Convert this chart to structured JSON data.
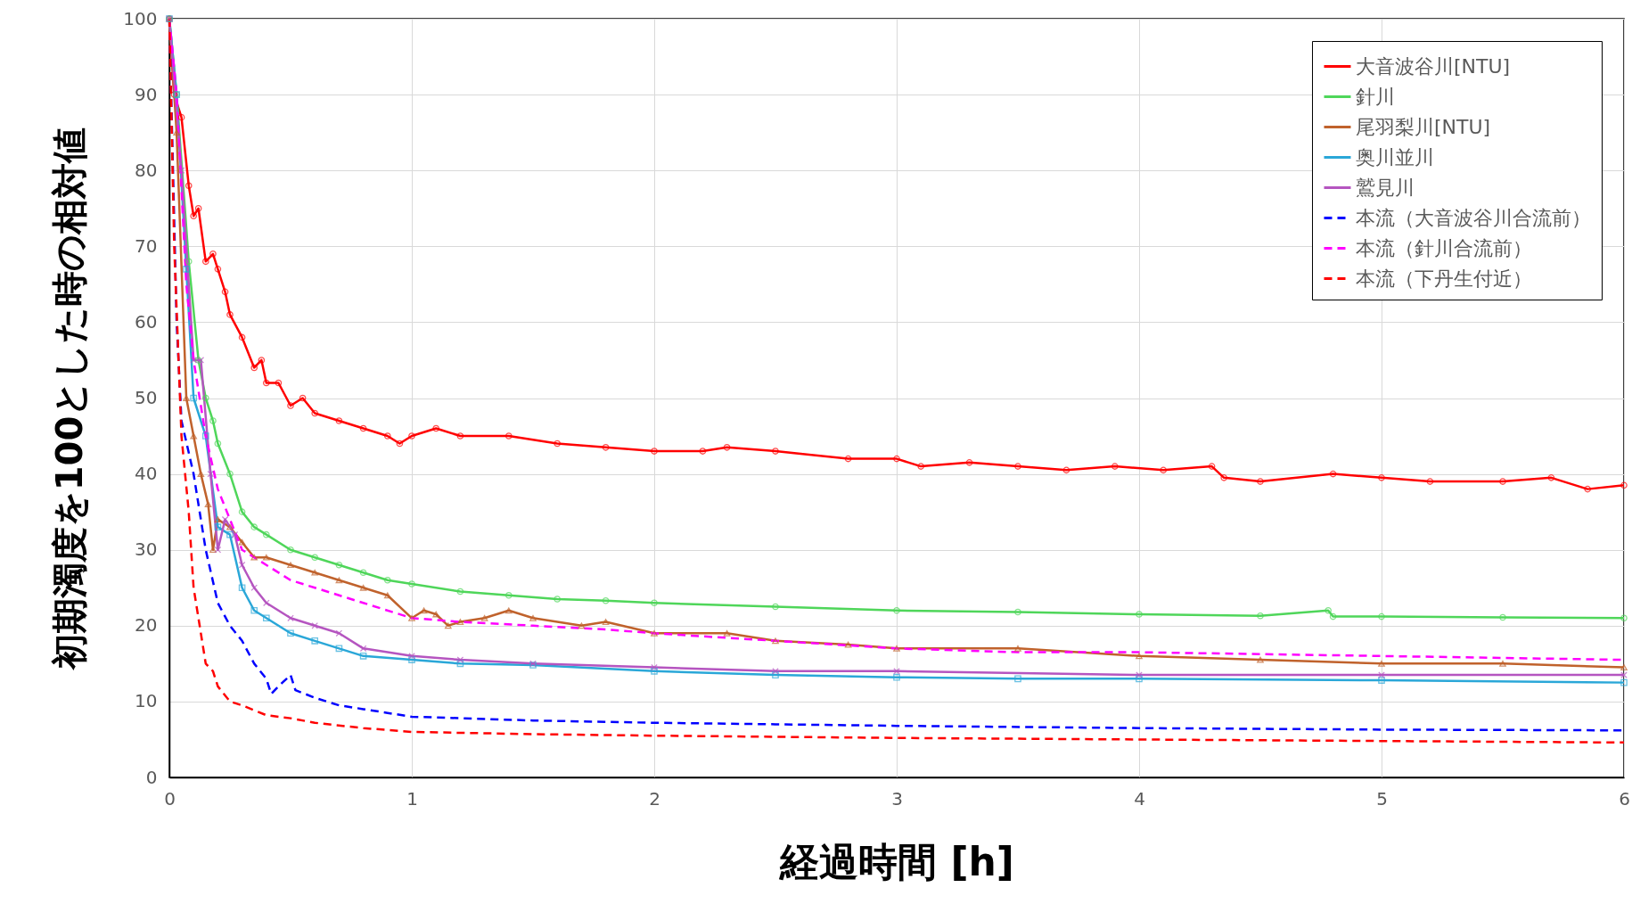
{
  "chart_data": {
    "type": "line",
    "xlabel": "経過時間 [h]",
    "ylabel": "初期濁度を100とした時の相対値",
    "xlim": [
      0,
      6
    ],
    "xticks": [
      0,
      1,
      2,
      3,
      4,
      5,
      6
    ],
    "ylim": [
      0,
      100
    ],
    "yticks": [
      0,
      10,
      20,
      30,
      40,
      50,
      60,
      70,
      80,
      90,
      100
    ],
    "grid": true,
    "legend": "top right",
    "series": [
      {
        "name": "大音波谷川[NTU]",
        "color": "#ff0000",
        "marker": "circle",
        "line_style": "solid",
        "x": [
          0,
          0.02,
          0.05,
          0.08,
          0.1,
          0.12,
          0.15,
          0.18,
          0.2,
          0.23,
          0.25,
          0.3,
          0.35,
          0.38,
          0.4,
          0.45,
          0.5,
          0.55,
          0.6,
          0.7,
          0.8,
          0.9,
          0.95,
          1.0,
          1.1,
          1.2,
          1.4,
          1.6,
          1.8,
          2.0,
          2.2,
          2.3,
          2.5,
          2.8,
          3.0,
          3.1,
          3.3,
          3.5,
          3.7,
          3.9,
          4.1,
          4.3,
          4.35,
          4.5,
          4.8,
          5.0,
          5.2,
          5.5,
          5.7,
          5.85,
          6.0
        ],
        "values": [
          100,
          90,
          87,
          78,
          74,
          75,
          68,
          69,
          67,
          64,
          61,
          58,
          54,
          55,
          52,
          52,
          49,
          50,
          48,
          47,
          46,
          45,
          44,
          45,
          46,
          45,
          45,
          44,
          43.5,
          43,
          43,
          43.5,
          43,
          42,
          42,
          41,
          41.5,
          41,
          40.5,
          41,
          40.5,
          41,
          39.5,
          39,
          40,
          39.5,
          39,
          39,
          39.5,
          38,
          38.5
        ]
      },
      {
        "name": "針川",
        "color": "#4fd65a",
        "marker": "circle",
        "line_style": "solid",
        "x": [
          0,
          0.03,
          0.08,
          0.12,
          0.15,
          0.18,
          0.2,
          0.25,
          0.3,
          0.35,
          0.4,
          0.5,
          0.6,
          0.7,
          0.8,
          0.9,
          1.0,
          1.2,
          1.4,
          1.6,
          1.8,
          2.0,
          2.5,
          3.0,
          3.5,
          4.0,
          4.5,
          4.78,
          4.8,
          5.0,
          5.5,
          6.0
        ],
        "values": [
          100,
          90,
          68,
          55,
          50,
          47,
          44,
          40,
          35,
          33,
          32,
          30,
          29,
          28,
          27,
          26,
          25.5,
          24.5,
          24,
          23.5,
          23.3,
          23,
          22.5,
          22,
          21.8,
          21.5,
          21.3,
          22,
          21.2,
          21.2,
          21.1,
          21
        ]
      },
      {
        "name": "尾羽梨川[NTU]",
        "color": "#c0622c",
        "marker": "triangle",
        "line_style": "solid",
        "x": [
          0,
          0.03,
          0.07,
          0.1,
          0.13,
          0.16,
          0.18,
          0.2,
          0.25,
          0.3,
          0.35,
          0.4,
          0.5,
          0.6,
          0.7,
          0.8,
          0.9,
          1.0,
          1.05,
          1.1,
          1.15,
          1.2,
          1.3,
          1.4,
          1.5,
          1.7,
          1.8,
          2.0,
          2.3,
          2.5,
          2.8,
          3.0,
          3.5,
          4.0,
          4.5,
          5.0,
          5.5,
          6.0
        ],
        "values": [
          100,
          85,
          50,
          45,
          40,
          36,
          30,
          34,
          33,
          31,
          29,
          29,
          28,
          27,
          26,
          25,
          24,
          21,
          22,
          21.5,
          20,
          20.5,
          21,
          22,
          21,
          20,
          20.5,
          19,
          19,
          18,
          17.5,
          17,
          17,
          16,
          15.5,
          15,
          15,
          14.5
        ]
      },
      {
        "name": "奥川並川",
        "color": "#2aa7d8",
        "marker": "square",
        "line_style": "solid",
        "x": [
          0,
          0.03,
          0.07,
          0.1,
          0.15,
          0.2,
          0.25,
          0.3,
          0.35,
          0.4,
          0.5,
          0.6,
          0.7,
          0.8,
          1.0,
          1.2,
          1.5,
          2.0,
          2.5,
          3.0,
          3.5,
          4.0,
          5.0,
          6.0
        ],
        "values": [
          100,
          90,
          67,
          50,
          45,
          33,
          32,
          25,
          22,
          21,
          19,
          18,
          17,
          16,
          15.5,
          15,
          14.8,
          14,
          13.5,
          13.2,
          13,
          13,
          12.8,
          12.5
        ]
      },
      {
        "name": "鷲見川",
        "color": "#b555c0",
        "marker": "cross",
        "line_style": "solid",
        "x": [
          0,
          0.05,
          0.1,
          0.13,
          0.17,
          0.2,
          0.23,
          0.27,
          0.3,
          0.35,
          0.4,
          0.5,
          0.6,
          0.7,
          0.8,
          1.0,
          1.2,
          1.5,
          2.0,
          2.5,
          3.0,
          4.0,
          5.0,
          6.0
        ],
        "values": [
          100,
          80,
          55,
          55,
          40,
          30,
          34,
          32,
          28,
          25,
          23,
          21,
          20,
          19,
          17,
          16,
          15.5,
          15,
          14.5,
          14,
          14,
          13.5,
          13.5,
          13.5
        ]
      },
      {
        "name": "本流（大音波谷川合流前）",
        "color": "#0000ff",
        "marker": "none",
        "line_style": "dashed",
        "x": [
          0,
          0.03,
          0.05,
          0.1,
          0.15,
          0.2,
          0.25,
          0.3,
          0.35,
          0.4,
          0.42,
          0.45,
          0.5,
          0.52,
          0.6,
          0.7,
          0.8,
          0.9,
          1.0,
          1.2,
          1.5,
          2.0,
          2.5,
          3.0,
          4.0,
          5.0,
          6.0
        ],
        "values": [
          100,
          60,
          47,
          40,
          30,
          23,
          20,
          18,
          15,
          13,
          11,
          12,
          13.5,
          11.5,
          10.5,
          9.5,
          9,
          8.5,
          8,
          7.8,
          7.5,
          7.2,
          7,
          6.8,
          6.5,
          6.3,
          6.2
        ]
      },
      {
        "name": "本流（針川合流前）",
        "color": "#ff00ff",
        "marker": "none",
        "line_style": "dashed",
        "x": [
          0,
          0.03,
          0.07,
          0.1,
          0.15,
          0.2,
          0.25,
          0.3,
          0.4,
          0.5,
          0.6,
          0.7,
          0.8,
          1.0,
          1.2,
          1.5,
          1.8,
          2.0,
          2.5,
          3.0,
          3.5,
          4.0,
          5.0,
          6.0
        ],
        "values": [
          100,
          90,
          65,
          55,
          45,
          38,
          34,
          30,
          28,
          26,
          25,
          24,
          23,
          21,
          20.5,
          20,
          19.5,
          19,
          18,
          17,
          16.5,
          16.5,
          16,
          15.5
        ]
      },
      {
        "name": "本流（下丹生付近）",
        "color": "#ff0000",
        "marker": "none",
        "line_style": "dashed",
        "x": [
          0,
          0.02,
          0.05,
          0.08,
          0.1,
          0.15,
          0.18,
          0.2,
          0.25,
          0.3,
          0.4,
          0.5,
          0.6,
          0.8,
          1.0,
          1.5,
          2.0,
          3.0,
          4.0,
          5.0,
          6.0
        ],
        "values": [
          100,
          70,
          45,
          35,
          25,
          15,
          14,
          12,
          10,
          9.5,
          8.2,
          7.8,
          7.2,
          6.5,
          6,
          5.7,
          5.5,
          5.2,
          5,
          4.8,
          4.6
        ]
      }
    ]
  }
}
